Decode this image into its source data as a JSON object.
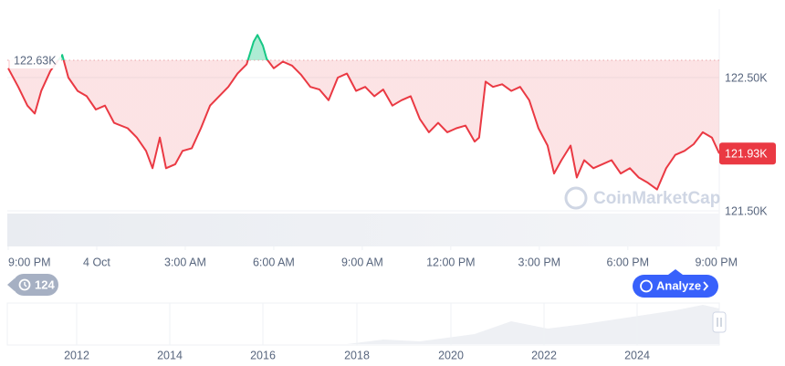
{
  "chart_data": {
    "type": "line",
    "x": [
      0,
      0.34,
      0.65,
      0.9,
      1.12,
      1.43,
      1.83,
      2.04,
      2.35,
      2.66,
      2.97,
      3.28,
      3.59,
      4.05,
      4.36,
      4.67,
      4.89,
      5.14,
      5.35,
      5.66,
      5.91,
      6.22,
      6.53,
      6.84,
      7.15,
      7.46,
      7.77,
      8.08,
      8.32,
      8.45,
      8.63,
      8.76,
      9.0,
      9.31,
      9.62,
      9.93,
      10.24,
      10.55,
      10.86,
      11.17,
      11.48,
      11.79,
      12.1,
      12.41,
      12.71,
      13.02,
      13.33,
      13.64,
      13.95,
      14.26,
      14.57,
      14.88,
      15.19,
      15.5,
      15.81,
      15.96,
      16.18,
      16.43,
      16.74,
      17.05,
      17.35,
      17.66,
      17.97,
      18.28,
      18.5,
      18.75,
      19.06,
      19.27,
      19.52,
      19.83,
      20.14,
      20.45,
      20.76,
      21.07,
      21.37,
      21.68,
      21.99,
      22.3,
      22.61,
      22.92,
      23.23,
      23.54,
      23.85,
      24.1
    ],
    "values": [
      122.57,
      122.43,
      122.29,
      122.23,
      122.4,
      122.55,
      122.67,
      122.5,
      122.4,
      122.36,
      122.26,
      122.29,
      122.16,
      122.12,
      122.05,
      121.95,
      121.82,
      122.05,
      121.82,
      121.85,
      121.95,
      121.97,
      122.12,
      122.29,
      122.36,
      122.43,
      122.53,
      122.6,
      122.77,
      122.82,
      122.74,
      122.64,
      122.57,
      122.62,
      122.59,
      122.52,
      122.43,
      122.41,
      122.33,
      122.5,
      122.53,
      122.4,
      122.43,
      122.36,
      122.41,
      122.29,
      122.33,
      122.36,
      122.19,
      122.09,
      122.16,
      122.09,
      122.12,
      122.14,
      122.02,
      122.05,
      122.47,
      122.43,
      122.45,
      122.4,
      122.43,
      122.33,
      122.12,
      121.99,
      121.78,
      121.88,
      121.99,
      121.75,
      121.88,
      121.82,
      121.85,
      121.88,
      121.78,
      121.82,
      121.75,
      121.71,
      121.66,
      121.82,
      121.92,
      121.95,
      122.0,
      122.09,
      122.05,
      121.93
    ],
    "color_up": "#16c784",
    "color_down": "#ea3943",
    "xlim": [
      0,
      24.1
    ],
    "xticks": [
      {
        "value": 0,
        "label": "9:00 PM"
      },
      {
        "value": 3,
        "label": "4 Oct"
      },
      {
        "value": 6,
        "label": "3:00 AM"
      },
      {
        "value": 9,
        "label": "6:00 AM"
      },
      {
        "value": 12,
        "label": "9:00 AM"
      },
      {
        "value": 15,
        "label": "12:00 PM"
      },
      {
        "value": 18,
        "label": "3:00 PM"
      },
      {
        "value": 21,
        "label": "6:00 PM"
      },
      {
        "value": 24,
        "label": "9:00 PM"
      }
    ],
    "ylim": [
      121.5,
      123.0
    ],
    "yticks": [
      {
        "value": 121.5,
        "label": "121.50K"
      },
      {
        "value": 122.5,
        "label": "122.50K"
      }
    ],
    "grid": true,
    "reference": {
      "value": 122.63,
      "label": "122.63K"
    },
    "current_label": "121.93K",
    "watermark": "CoinMarketCap",
    "badge": "124",
    "button": "Analyze",
    "navigator_labels": [
      "2012",
      "2014",
      "2016",
      "2018",
      "2020",
      "2022",
      "2024"
    ]
  }
}
